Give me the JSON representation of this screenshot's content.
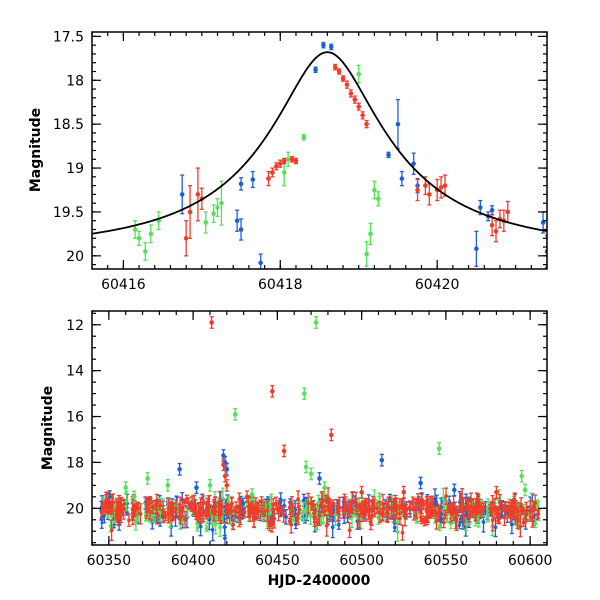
{
  "colors": {
    "blue": "#1f5fd6",
    "green": "#55e05a",
    "red": "#f23c2a",
    "model": "#000000"
  },
  "chart_data": [
    {
      "type": "scatter",
      "panel": "top",
      "xlabel": "",
      "ylabel": "Magnitude",
      "xlim": [
        60415.6,
        60421.4
      ],
      "ylim": [
        20.15,
        17.45
      ],
      "y_inverted": true,
      "xticks": [
        60416,
        60418,
        60420
      ],
      "yticks": [
        17.5,
        18,
        18.5,
        19,
        19.5,
        20
      ],
      "model_curve": {
        "peak_x": 60418.6,
        "peak_mag": 17.68,
        "baseline_mag": 19.98,
        "width": 0.55
      },
      "series": [
        {
          "color": "blue",
          "points": [
            {
              "x": 60416.75,
              "y": 19.3,
              "err": 0.22
            },
            {
              "x": 60417.45,
              "y": 19.6,
              "err": 0.12
            },
            {
              "x": 60417.5,
              "y": 19.18,
              "err": 0.07
            },
            {
              "x": 60417.5,
              "y": 19.7,
              "err": 0.12
            },
            {
              "x": 60417.65,
              "y": 19.13,
              "err": 0.09
            },
            {
              "x": 60417.75,
              "y": 20.08,
              "err": 0.1
            },
            {
              "x": 60418.45,
              "y": 17.88,
              "err": 0.03
            },
            {
              "x": 60418.55,
              "y": 17.6,
              "err": 0.03
            },
            {
              "x": 60418.65,
              "y": 17.62,
              "err": 0.03
            },
            {
              "x": 60419.38,
              "y": 18.85,
              "err": 0.03
            },
            {
              "x": 60419.5,
              "y": 18.5,
              "err": 0.28
            },
            {
              "x": 60419.55,
              "y": 19.12,
              "err": 0.08
            },
            {
              "x": 60419.7,
              "y": 18.95,
              "err": 0.12
            },
            {
              "x": 60419.75,
              "y": 19.2,
              "err": 0.08
            },
            {
              "x": 60420.5,
              "y": 19.92,
              "err": 0.2
            },
            {
              "x": 60420.55,
              "y": 19.45,
              "err": 0.08
            },
            {
              "x": 60420.65,
              "y": 19.55,
              "err": 0.05
            },
            {
              "x": 60420.7,
              "y": 19.48,
              "err": 0.05
            },
            {
              "x": 60421.35,
              "y": 19.62,
              "err": 0.12
            },
            {
              "x": 60421.4,
              "y": 19.95,
              "err": 0.18
            }
          ]
        },
        {
          "color": "green",
          "points": [
            {
              "x": 60416.15,
              "y": 19.7,
              "err": 0.1
            },
            {
              "x": 60416.2,
              "y": 19.8,
              "err": 0.08
            },
            {
              "x": 60416.28,
              "y": 19.95,
              "err": 0.1
            },
            {
              "x": 60416.35,
              "y": 19.75,
              "err": 0.1
            },
            {
              "x": 60416.45,
              "y": 19.6,
              "err": 0.1
            },
            {
              "x": 60417.05,
              "y": 19.62,
              "err": 0.12
            },
            {
              "x": 60417.15,
              "y": 19.52,
              "err": 0.1
            },
            {
              "x": 60417.2,
              "y": 19.45,
              "err": 0.1
            },
            {
              "x": 60417.25,
              "y": 19.4,
              "err": 0.25
            },
            {
              "x": 60418.05,
              "y": 19.05,
              "err": 0.15
            },
            {
              "x": 60418.1,
              "y": 18.9,
              "err": 0.08
            },
            {
              "x": 60418.3,
              "y": 18.65,
              "err": 0.03
            },
            {
              "x": 60419.0,
              "y": 17.93,
              "err": 0.1
            },
            {
              "x": 60419.1,
              "y": 19.98,
              "err": 0.14
            },
            {
              "x": 60419.15,
              "y": 19.75,
              "err": 0.12
            },
            {
              "x": 60419.2,
              "y": 19.25,
              "err": 0.1
            },
            {
              "x": 60419.25,
              "y": 19.35,
              "err": 0.08
            }
          ]
        },
        {
          "color": "red",
          "points": [
            {
              "x": 60416.8,
              "y": 19.8,
              "err": 0.2
            },
            {
              "x": 60416.85,
              "y": 19.5,
              "err": 0.3
            },
            {
              "x": 60416.95,
              "y": 19.3,
              "err": 0.3
            },
            {
              "x": 60417.0,
              "y": 19.35,
              "err": 0.12
            },
            {
              "x": 60417.85,
              "y": 19.12,
              "err": 0.08
            },
            {
              "x": 60417.9,
              "y": 19.05,
              "err": 0.05
            },
            {
              "x": 60417.95,
              "y": 18.98,
              "err": 0.04
            },
            {
              "x": 60418.0,
              "y": 18.95,
              "err": 0.04
            },
            {
              "x": 60418.05,
              "y": 18.92,
              "err": 0.03
            },
            {
              "x": 60418.15,
              "y": 18.9,
              "err": 0.03
            },
            {
              "x": 60418.2,
              "y": 18.92,
              "err": 0.03
            },
            {
              "x": 60418.7,
              "y": 17.85,
              "err": 0.03
            },
            {
              "x": 60418.75,
              "y": 17.9,
              "err": 0.03
            },
            {
              "x": 60418.8,
              "y": 17.98,
              "err": 0.03
            },
            {
              "x": 60418.85,
              "y": 18.05,
              "err": 0.04
            },
            {
              "x": 60418.9,
              "y": 18.15,
              "err": 0.04
            },
            {
              "x": 60418.95,
              "y": 18.22,
              "err": 0.04
            },
            {
              "x": 60419.0,
              "y": 18.3,
              "err": 0.04
            },
            {
              "x": 60419.05,
              "y": 18.4,
              "err": 0.04
            },
            {
              "x": 60419.1,
              "y": 18.5,
              "err": 0.04
            },
            {
              "x": 60419.75,
              "y": 19.25,
              "err": 0.12
            },
            {
              "x": 60419.85,
              "y": 19.2,
              "err": 0.1
            },
            {
              "x": 60419.9,
              "y": 19.3,
              "err": 0.12
            },
            {
              "x": 60420.0,
              "y": 19.25,
              "err": 0.12
            },
            {
              "x": 60420.05,
              "y": 19.22,
              "err": 0.12
            },
            {
              "x": 60420.1,
              "y": 19.2,
              "err": 0.12
            },
            {
              "x": 60420.7,
              "y": 19.65,
              "err": 0.12
            },
            {
              "x": 60420.75,
              "y": 19.72,
              "err": 0.12
            },
            {
              "x": 60420.8,
              "y": 19.58,
              "err": 0.1
            },
            {
              "x": 60420.85,
              "y": 19.6,
              "err": 0.12
            },
            {
              "x": 60420.9,
              "y": 19.5,
              "err": 0.12
            }
          ]
        }
      ]
    },
    {
      "type": "scatter",
      "panel": "bottom",
      "xlabel": "HJD-2400000",
      "ylabel": "Magnitude",
      "xlim": [
        60340,
        60610
      ],
      "ylim": [
        21.6,
        11.4
      ],
      "y_inverted": true,
      "xticks": [
        60350,
        60400,
        60450,
        60500,
        60550,
        60600
      ],
      "yticks": [
        12,
        14,
        16,
        18,
        20
      ],
      "dense_band": {
        "x_range": [
          60345,
          60605
        ],
        "mag_mean": 20.05,
        "mag_spread": 0.45,
        "mag_tail": 0.9
      },
      "series": [
        {
          "color": "blue",
          "outliers": [
            {
              "x": 60418,
              "y": 17.7
            },
            {
              "x": 60419,
              "y": 18.0
            },
            {
              "x": 60420,
              "y": 18.3
            },
            {
              "x": 60392,
              "y": 18.3
            },
            {
              "x": 60475,
              "y": 18.7
            },
            {
              "x": 60512,
              "y": 17.9
            },
            {
              "x": 60535,
              "y": 18.9
            },
            {
              "x": 60402,
              "y": 19.1
            },
            {
              "x": 60555,
              "y": 19.2
            }
          ]
        },
        {
          "color": "green",
          "outliers": [
            {
              "x": 60473,
              "y": 11.9
            },
            {
              "x": 60466,
              "y": 15.0
            },
            {
              "x": 60425,
              "y": 15.9
            },
            {
              "x": 60546,
              "y": 17.4
            },
            {
              "x": 60467,
              "y": 18.2
            },
            {
              "x": 60470,
              "y": 18.5
            },
            {
              "x": 60373,
              "y": 18.7
            },
            {
              "x": 60595,
              "y": 18.6
            },
            {
              "x": 60385,
              "y": 19.0
            },
            {
              "x": 60410,
              "y": 19.0
            },
            {
              "x": 60478,
              "y": 19.1
            },
            {
              "x": 60597,
              "y": 19.2
            },
            {
              "x": 60360,
              "y": 19.1
            },
            {
              "x": 60365,
              "y": 19.5
            },
            {
              "x": 60435,
              "y": 19.4
            }
          ]
        },
        {
          "color": "red",
          "outliers": [
            {
              "x": 60411,
              "y": 11.9
            },
            {
              "x": 60447,
              "y": 14.9
            },
            {
              "x": 60482,
              "y": 16.8
            },
            {
              "x": 60454,
              "y": 17.5
            },
            {
              "x": 60418,
              "y": 18.1
            },
            {
              "x": 60419,
              "y": 18.6
            },
            {
              "x": 60420,
              "y": 19.0
            },
            {
              "x": 60500,
              "y": 19.3
            },
            {
              "x": 60525,
              "y": 19.3
            },
            {
              "x": 60580,
              "y": 19.3
            },
            {
              "x": 60432,
              "y": 19.5
            }
          ]
        }
      ]
    }
  ]
}
